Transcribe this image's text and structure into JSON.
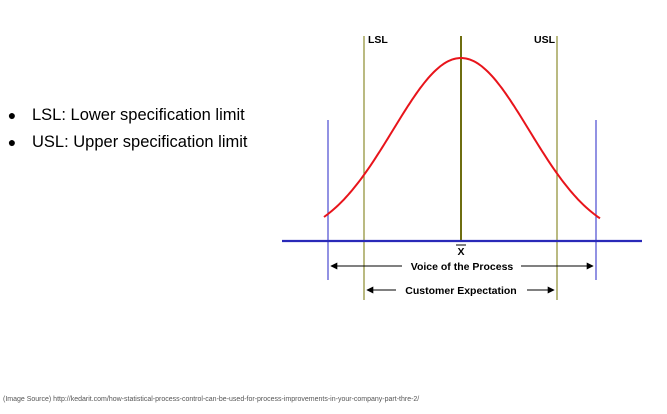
{
  "bullets": [
    {
      "text": "LSL: Lower specification limit"
    },
    {
      "text": "USL: Upper specification limit"
    }
  ],
  "diagram": {
    "lsl_label": "LSL",
    "usl_label": "USL",
    "mean_label": "X",
    "process_label": "Voice of the Process",
    "customer_label": "Customer Expectation",
    "colors": {
      "curve": "#e8141b",
      "baseline": "#2929b8",
      "process_limits": "#4a4ad0",
      "spec_limits": "#8c8c2e",
      "mean_line": "#6e6e10",
      "arrows": "#000000"
    }
  },
  "source_text": "(Image Source) http://kedarit.com/how-statistical-process-control-can-be-used-for-process-improvements-in-your-company-part-thre-2/"
}
